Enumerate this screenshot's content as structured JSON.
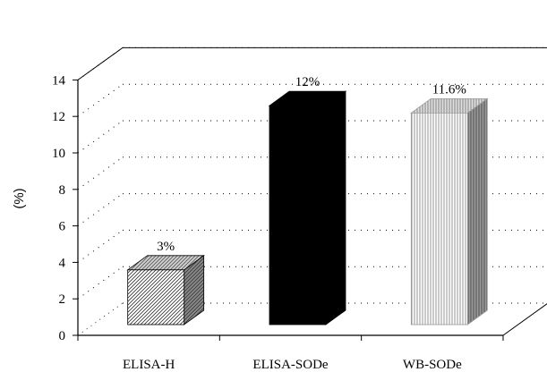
{
  "chart_data": {
    "type": "bar",
    "title": "",
    "xlabel": "",
    "ylabel": "(%)",
    "ylim": [
      0,
      14
    ],
    "yticks": [
      0,
      2,
      4,
      6,
      8,
      10,
      12,
      14
    ],
    "grid": true,
    "three_d": true,
    "categories": [
      "ELISA-H",
      "ELISA-SODe",
      "WB-SODe"
    ],
    "values": [
      3,
      12,
      11.6
    ],
    "data_labels": [
      "3%",
      "12%",
      "11.6%"
    ],
    "bar_styles": [
      "diagonal-hatch",
      "solid-black",
      "vertical-stripes"
    ],
    "colors": {
      "axis": "#000000",
      "grid": "#000000",
      "bar_solid": "#000000"
    }
  }
}
